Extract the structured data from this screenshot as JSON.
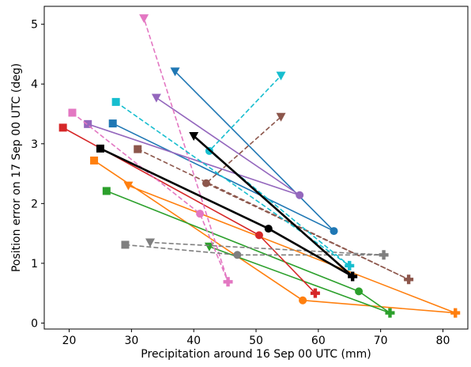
{
  "chart_data": {
    "type": "line",
    "xlabel": "Precipitation around 16 Sep 00 UTC (mm)",
    "ylabel": "Position error on 17 Sep 00 UTC (deg)",
    "xlim": [
      16,
      84
    ],
    "ylim": [
      -0.1,
      5.3
    ],
    "xticks": [
      "20",
      "30",
      "40",
      "50",
      "60",
      "70",
      "80"
    ],
    "yticks": [
      "0",
      "1",
      "2",
      "3",
      "4",
      "5"
    ],
    "grid": false,
    "series": [
      {
        "color": "#1f77b4",
        "dash": false,
        "points": [
          {
            "x": 27,
            "y": 3.34,
            "marker": "square"
          },
          {
            "x": 62.5,
            "y": 1.54,
            "marker": "circle"
          },
          {
            "x": 37,
            "y": 4.21,
            "marker": "triangle-down"
          }
        ]
      },
      {
        "color": "#ff7f0e",
        "dash": false,
        "points": [
          {
            "x": 24,
            "y": 2.72,
            "marker": "square"
          },
          {
            "x": 57.5,
            "y": 0.38,
            "marker": "circle"
          },
          {
            "x": 82,
            "y": 0.17,
            "marker": "plus"
          },
          {
            "x": 29.5,
            "y": 2.3,
            "marker": "triangle-down"
          }
        ]
      },
      {
        "color": "#2ca02c",
        "dash": false,
        "points": [
          {
            "x": 26,
            "y": 2.21,
            "marker": "square"
          },
          {
            "x": 66.5,
            "y": 0.53,
            "marker": "circle"
          },
          {
            "x": 71.5,
            "y": 0.17,
            "marker": "plus"
          },
          {
            "x": 42.5,
            "y": 1.28,
            "marker": "triangle-down"
          }
        ]
      },
      {
        "color": "#d62728",
        "dash": false,
        "points": [
          {
            "x": 19,
            "y": 3.27,
            "marker": "square"
          },
          {
            "x": 50.5,
            "y": 1.47,
            "marker": "circle"
          },
          {
            "x": 59.5,
            "y": 0.5,
            "marker": "plus"
          }
        ]
      },
      {
        "color": "#9467bd",
        "dash": false,
        "points": [
          {
            "x": 23,
            "y": 3.33,
            "marker": "square"
          },
          {
            "x": 57,
            "y": 2.14,
            "marker": "circle"
          },
          {
            "x": 34,
            "y": 3.77,
            "marker": "triangle-down"
          }
        ]
      },
      {
        "color": "#8c564b",
        "dash": true,
        "points": [
          {
            "x": 31,
            "y": 2.91,
            "marker": "square"
          },
          {
            "x": 74.5,
            "y": 0.73,
            "marker": "plus"
          },
          {
            "x": 42,
            "y": 2.34,
            "marker": "circle"
          },
          {
            "x": 54,
            "y": 3.45,
            "marker": "triangle-down"
          }
        ]
      },
      {
        "color": "#e377c2",
        "dash": true,
        "points": [
          {
            "x": 20.5,
            "y": 3.52,
            "marker": "square"
          },
          {
            "x": 41,
            "y": 1.83,
            "marker": "circle"
          },
          {
            "x": 45.5,
            "y": 0.69,
            "marker": "plus"
          },
          {
            "x": 32,
            "y": 5.1,
            "marker": "triangle-down"
          }
        ]
      },
      {
        "color": "#7f7f7f",
        "dash": true,
        "points": [
          {
            "x": 29,
            "y": 1.31,
            "marker": "square"
          },
          {
            "x": 47,
            "y": 1.14,
            "marker": "circle"
          },
          {
            "x": 70.5,
            "y": 1.14,
            "marker": "plus"
          },
          {
            "x": 33,
            "y": 1.35,
            "marker": "triangle-down"
          }
        ]
      },
      {
        "color": "#17becf",
        "dash": true,
        "points": [
          {
            "x": 27.5,
            "y": 3.7,
            "marker": "square"
          },
          {
            "x": 65,
            "y": 0.96,
            "marker": "plus"
          },
          {
            "x": 42.5,
            "y": 2.88,
            "marker": "circle"
          },
          {
            "x": 54,
            "y": 4.14,
            "marker": "triangle-down"
          }
        ]
      },
      {
        "color": "#000000",
        "dash": false,
        "bold": true,
        "points": [
          {
            "x": 25,
            "y": 2.92,
            "marker": "square"
          },
          {
            "x": 52,
            "y": 1.58,
            "marker": "circle"
          },
          {
            "x": 65.5,
            "y": 0.78,
            "marker": "plus"
          },
          {
            "x": 40,
            "y": 3.13,
            "marker": "triangle-down"
          }
        ]
      }
    ]
  }
}
